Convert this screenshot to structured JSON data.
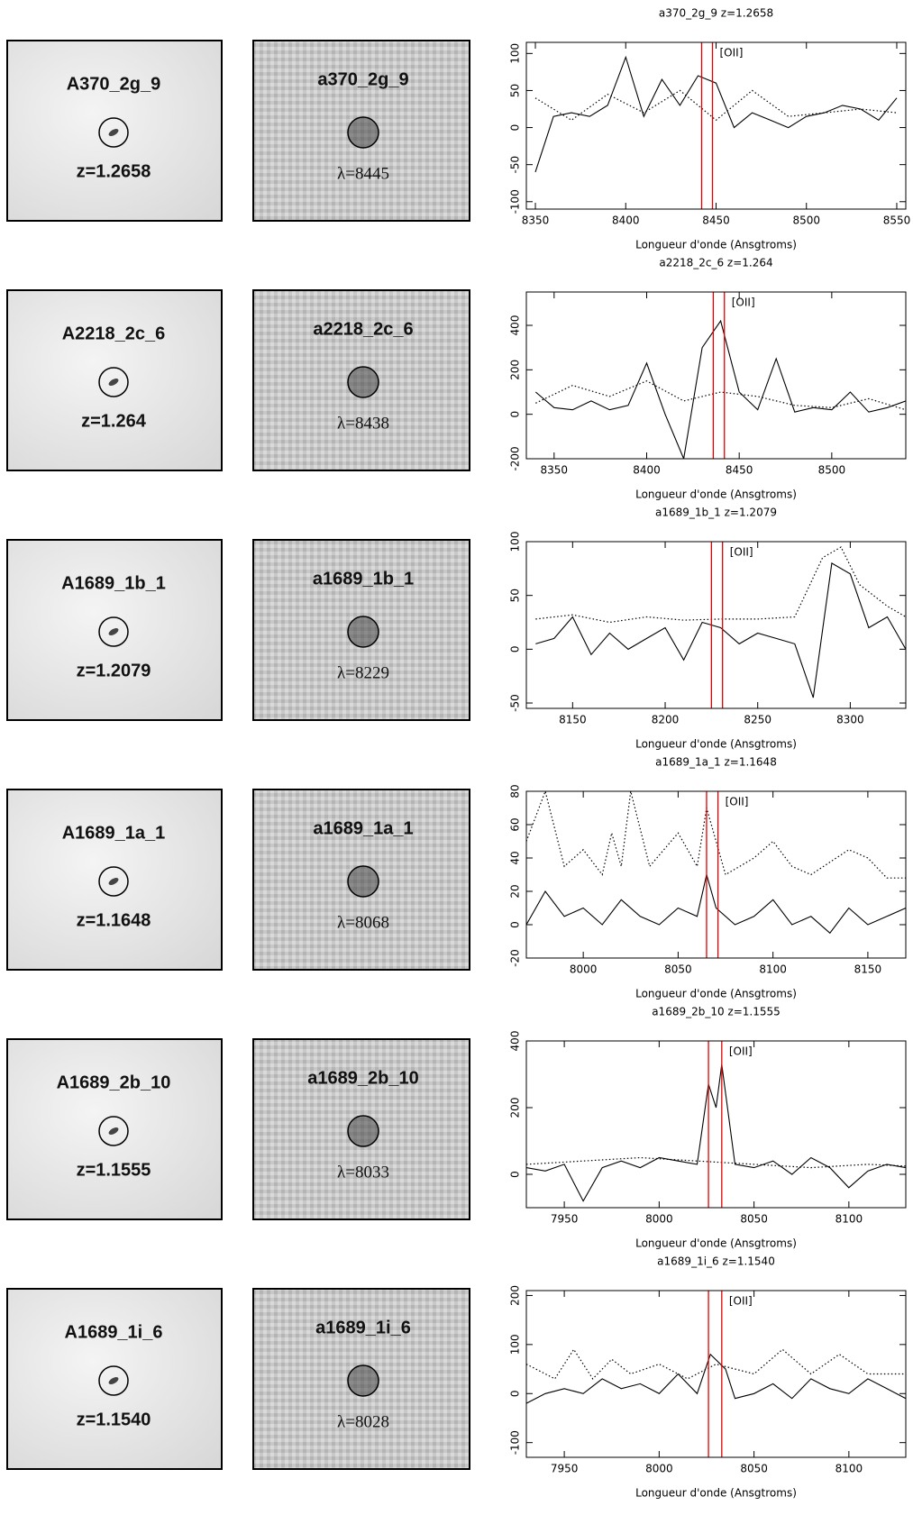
{
  "rows": [
    {
      "image_label": "A370_2g_9",
      "image_redshift": "z=1.2658",
      "cutout_label": "a370_2g_9",
      "cutout_wavelength": "λ=8445"
    },
    {
      "image_label": "A2218_2c_6",
      "image_redshift": "z=1.264",
      "cutout_label": "a2218_2c_6",
      "cutout_wavelength": "λ=8438"
    },
    {
      "image_label": "A1689_1b_1",
      "image_redshift": "z=1.2079",
      "cutout_label": "a1689_1b_1",
      "cutout_wavelength": "λ=8229"
    },
    {
      "image_label": "A1689_1a_1",
      "image_redshift": "z=1.1648",
      "cutout_label": "a1689_1a_1",
      "cutout_wavelength": "λ=8068"
    },
    {
      "image_label": "A1689_2b_10",
      "image_redshift": "z=1.1555",
      "cutout_label": "a1689_2b_10",
      "cutout_wavelength": "λ=8033"
    },
    {
      "image_label": "A1689_1i_6",
      "image_redshift": "z=1.1540",
      "cutout_label": "a1689_1i_6",
      "cutout_wavelength": "λ=8028"
    }
  ],
  "chart_data": [
    {
      "type": "line",
      "title": "a370_2g_9 z=1.2658",
      "x_label": "Longueur d'onde (Ansgtroms)",
      "xlim": [
        8345,
        8555
      ],
      "xticks": [
        8350,
        8400,
        8450,
        8500,
        8550
      ],
      "ylim": [
        -110,
        115
      ],
      "yticks": [
        -100,
        -50,
        0,
        50,
        100
      ],
      "marker_lines": [
        8442,
        8448
      ],
      "marker_color": "#e00000",
      "annotation": "[OII]",
      "series": [
        {
          "color": "#000000",
          "style": "solid",
          "x": [
            8350,
            8360,
            8370,
            8380,
            8390,
            8400,
            8410,
            8420,
            8430,
            8440,
            8450,
            8460,
            8470,
            8480,
            8490,
            8500,
            8510,
            8520,
            8530,
            8540,
            8550
          ],
          "values": [
            -60,
            15,
            20,
            15,
            30,
            95,
            15,
            65,
            30,
            70,
            60,
            0,
            20,
            10,
            0,
            15,
            20,
            30,
            25,
            10,
            40
          ]
        },
        {
          "color": "#000000",
          "style": "dotted",
          "x": [
            8350,
            8370,
            8390,
            8410,
            8430,
            8450,
            8470,
            8490,
            8510,
            8530,
            8550
          ],
          "values": [
            40,
            10,
            45,
            20,
            50,
            10,
            50,
            15,
            20,
            25,
            20
          ]
        }
      ]
    },
    {
      "type": "line",
      "title": "a2218_2c_6 z=1.264",
      "x_label": "Longueur d'onde (Ansgtroms)",
      "xlim": [
        8335,
        8540
      ],
      "xticks": [
        8350,
        8400,
        8450,
        8500
      ],
      "ylim": [
        -200,
        550
      ],
      "yticks": [
        -200,
        0,
        200,
        400
      ],
      "marker_lines": [
        8436,
        8442
      ],
      "marker_color": "#e00000",
      "annotation": "[OII]",
      "series": [
        {
          "color": "#000000",
          "style": "solid",
          "x": [
            8340,
            8350,
            8360,
            8370,
            8380,
            8390,
            8400,
            8410,
            8420,
            8430,
            8440,
            8450,
            8460,
            8470,
            8480,
            8490,
            8500,
            8510,
            8520,
            8530,
            8540
          ],
          "values": [
            100,
            30,
            20,
            60,
            20,
            40,
            230,
            0,
            -200,
            300,
            420,
            100,
            20,
            250,
            10,
            30,
            20,
            100,
            10,
            30,
            60
          ]
        },
        {
          "color": "#000000",
          "style": "dotted",
          "x": [
            8340,
            8360,
            8380,
            8400,
            8420,
            8440,
            8460,
            8480,
            8500,
            8520,
            8540
          ],
          "values": [
            50,
            130,
            80,
            150,
            60,
            100,
            80,
            40,
            30,
            70,
            20
          ]
        }
      ]
    },
    {
      "type": "line",
      "title": "a1689_1b_1 z=1.2079",
      "x_label": "Longueur d'onde (Ansgtroms)",
      "xlim": [
        8125,
        8330
      ],
      "xticks": [
        8150,
        8200,
        8250,
        8300
      ],
      "ylim": [
        -55,
        100
      ],
      "yticks": [
        -50,
        0,
        50,
        100
      ],
      "marker_lines": [
        8225,
        8231
      ],
      "marker_color": "#e00000",
      "annotation": "[OII]",
      "series": [
        {
          "color": "#000000",
          "style": "solid",
          "x": [
            8130,
            8140,
            8150,
            8160,
            8170,
            8180,
            8190,
            8200,
            8210,
            8220,
            8230,
            8240,
            8250,
            8260,
            8270,
            8280,
            8290,
            8300,
            8310,
            8320,
            8330
          ],
          "values": [
            5,
            10,
            30,
            -5,
            15,
            0,
            10,
            20,
            -10,
            25,
            20,
            5,
            15,
            10,
            5,
            -45,
            80,
            70,
            20,
            30,
            0
          ]
        },
        {
          "color": "#000000",
          "style": "dotted",
          "x": [
            8130,
            8150,
            8170,
            8190,
            8210,
            8230,
            8250,
            8270,
            8285,
            8295,
            8305,
            8320,
            8330
          ],
          "values": [
            28,
            32,
            25,
            30,
            27,
            28,
            28,
            30,
            85,
            95,
            60,
            40,
            30
          ]
        }
      ]
    },
    {
      "type": "line",
      "title": "a1689_1a_1 z=1.1648",
      "x_label": "Longueur d'onde (Ansgtroms)",
      "xlim": [
        7970,
        8170
      ],
      "xticks": [
        8000,
        8050,
        8100,
        8150
      ],
      "ylim": [
        -20,
        80
      ],
      "yticks": [
        -20,
        0,
        20,
        40,
        60,
        80
      ],
      "marker_lines": [
        8065,
        8071
      ],
      "marker_color": "#e00000",
      "annotation": "[OII]",
      "series": [
        {
          "color": "#000000",
          "style": "solid",
          "x": [
            7970,
            7980,
            7990,
            8000,
            8010,
            8020,
            8030,
            8040,
            8050,
            8060,
            8065,
            8070,
            8080,
            8090,
            8100,
            8110,
            8120,
            8130,
            8140,
            8150,
            8160,
            8170
          ],
          "values": [
            0,
            20,
            5,
            10,
            0,
            15,
            5,
            0,
            10,
            5,
            30,
            10,
            0,
            5,
            15,
            0,
            5,
            -5,
            10,
            0,
            5,
            10
          ]
        },
        {
          "color": "#000000",
          "style": "dotted",
          "x": [
            7970,
            7980,
            7990,
            8000,
            8010,
            8015,
            8020,
            8025,
            8035,
            8050,
            8060,
            8065,
            8075,
            8090,
            8100,
            8110,
            8120,
            8140,
            8150,
            8160,
            8170
          ],
          "values": [
            50,
            80,
            35,
            45,
            30,
            55,
            35,
            80,
            35,
            55,
            35,
            70,
            30,
            40,
            50,
            35,
            30,
            45,
            40,
            28,
            28
          ]
        }
      ]
    },
    {
      "type": "line",
      "title": "a1689_2b_10 z=1.1555",
      "x_label": "Longueur d'onde (Ansgtroms)",
      "xlim": [
        7930,
        8130
      ],
      "xticks": [
        7950,
        8000,
        8050,
        8100
      ],
      "ylim": [
        -100,
        400
      ],
      "yticks": [
        0,
        200,
        400
      ],
      "marker_lines": [
        8026,
        8033
      ],
      "marker_color": "#e00000",
      "annotation": "[OII]",
      "series": [
        {
          "color": "#000000",
          "style": "solid",
          "x": [
            7930,
            7940,
            7950,
            7960,
            7970,
            7980,
            7990,
            8000,
            8010,
            8020,
            8026,
            8030,
            8033,
            8040,
            8050,
            8060,
            8070,
            8080,
            8090,
            8100,
            8110,
            8120,
            8130
          ],
          "values": [
            20,
            10,
            30,
            -80,
            20,
            40,
            20,
            50,
            40,
            30,
            270,
            200,
            330,
            30,
            20,
            40,
            0,
            50,
            20,
            -40,
            10,
            30,
            20
          ]
        },
        {
          "color": "#000000",
          "style": "dotted",
          "x": [
            7930,
            7960,
            7990,
            8020,
            8050,
            8080,
            8110,
            8130
          ],
          "values": [
            30,
            40,
            50,
            40,
            30,
            20,
            30,
            25
          ]
        }
      ]
    },
    {
      "type": "line",
      "title": "a1689_1i_6 z=1.1540",
      "x_label": "Longueur d'onde (Ansgtroms)",
      "xlim": [
        7930,
        8130
      ],
      "xticks": [
        7950,
        8000,
        8050,
        8100
      ],
      "ylim": [
        -130,
        210
      ],
      "yticks": [
        -100,
        0,
        100,
        200
      ],
      "marker_lines": [
        8026,
        8033
      ],
      "marker_color": "#e00000",
      "annotation": "[OII]",
      "series": [
        {
          "color": "#000000",
          "style": "solid",
          "x": [
            7930,
            7940,
            7950,
            7960,
            7970,
            7980,
            7990,
            8000,
            8010,
            8020,
            8027,
            8035,
            8040,
            8050,
            8060,
            8070,
            8080,
            8090,
            8100,
            8110,
            8120,
            8130
          ],
          "values": [
            -20,
            0,
            10,
            0,
            30,
            10,
            20,
            0,
            40,
            0,
            80,
            50,
            -10,
            0,
            20,
            -10,
            30,
            10,
            0,
            30,
            10,
            -10
          ]
        },
        {
          "color": "#000000",
          "style": "dotted",
          "x": [
            7930,
            7945,
            7955,
            7965,
            7975,
            7985,
            8000,
            8015,
            8030,
            8050,
            8065,
            8080,
            8095,
            8110,
            8130
          ],
          "values": [
            60,
            30,
            90,
            30,
            70,
            40,
            60,
            30,
            60,
            40,
            90,
            40,
            80,
            40,
            40
          ]
        }
      ]
    }
  ]
}
